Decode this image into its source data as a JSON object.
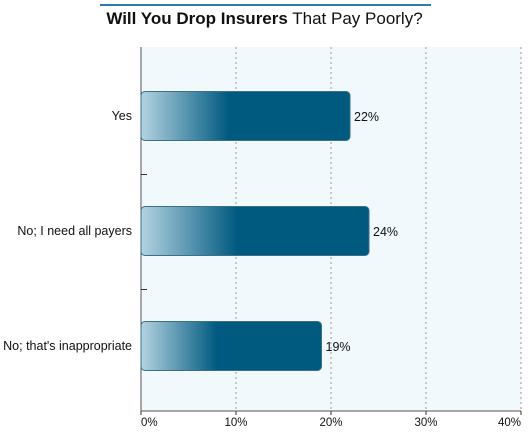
{
  "chart_data": {
    "type": "bar",
    "orientation": "horizontal",
    "title_bold": "Will You Drop Insurers",
    "title_rest": "That Pay Poorly?",
    "categories": [
      "Yes",
      "No; I need all payers",
      "No; that's inappropriate"
    ],
    "values": [
      22,
      24,
      19
    ],
    "value_labels": [
      "22%",
      "24%",
      "19%"
    ],
    "xlim": [
      0,
      40
    ],
    "xticks": [
      0,
      10,
      20,
      30,
      40
    ],
    "xtick_labels": [
      "0%",
      "10%",
      "20%",
      "30%",
      "40%"
    ],
    "grid": true,
    "legend": "none",
    "colors": {
      "bar_dark": "#005a80",
      "bar_light": "#b4d3e1",
      "plot_bg": "#f1f9fd",
      "grid": "#9a9a9a",
      "title_rule": "#2d7ea6"
    }
  }
}
